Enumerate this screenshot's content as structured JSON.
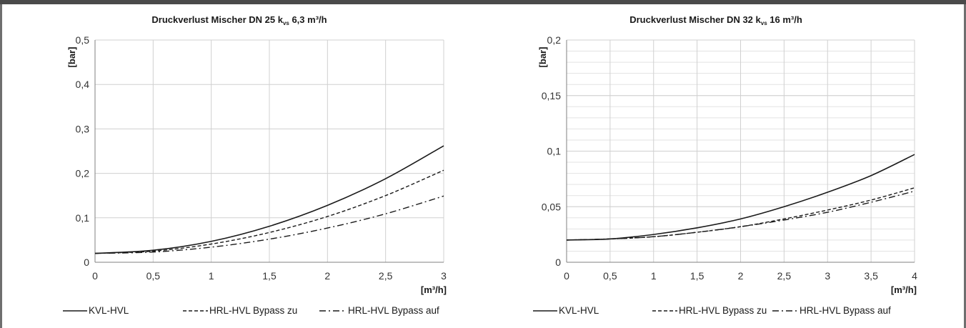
{
  "chart_data": [
    {
      "type": "line",
      "title": "Druckverlust Mischer DN 25 k",
      "title_sub": "vs",
      "title_rest": " 6,3 m³/h",
      "ylabel": "[bar]",
      "xlabel": "[m³/h]",
      "xlim": [
        0,
        3
      ],
      "ylim": [
        0,
        0.5
      ],
      "x_ticks": [
        0,
        0.5,
        1,
        1.5,
        2,
        2.5,
        3
      ],
      "x_tick_labels": [
        "0",
        "0,5",
        "1",
        "1,5",
        "2",
        "2,5",
        "3"
      ],
      "y_ticks": [
        0,
        0.1,
        0.2,
        0.3,
        0.4,
        0.5
      ],
      "y_tick_labels": [
        "0",
        "0,1",
        "0,2",
        "0,3",
        "0,4",
        "0,5"
      ],
      "grid": true,
      "legend_position": "bottom",
      "x": [
        0,
        0.5,
        1,
        1.5,
        2,
        2.5,
        3
      ],
      "series": [
        {
          "name": "KVL-HVL",
          "style": "solid",
          "values": [
            0.02,
            0.027,
            0.047,
            0.081,
            0.128,
            0.188,
            0.262
          ]
        },
        {
          "name": "HRL-HVL Bypass zu",
          "style": "dashed",
          "values": [
            0.02,
            0.025,
            0.041,
            0.067,
            0.103,
            0.15,
            0.207
          ]
        },
        {
          "name": "HRL-HVL Bypass auf",
          "style": "dashdot",
          "values": [
            0.02,
            0.023,
            0.034,
            0.052,
            0.077,
            0.109,
            0.149
          ]
        }
      ]
    },
    {
      "type": "line",
      "title": "Druckverlust Mischer DN 32 k",
      "title_sub": "vs",
      "title_rest": " 16 m³/h",
      "ylabel": "[bar]",
      "xlabel": "[m³/h]",
      "xlim": [
        0,
        4
      ],
      "ylim": [
        0,
        0.2
      ],
      "x_ticks": [
        0,
        0.5,
        1,
        1.5,
        2,
        2.5,
        3,
        3.5,
        4
      ],
      "x_tick_labels": [
        "0",
        "0,5",
        "1",
        "1,5",
        "2",
        "2,5",
        "3",
        "3,5",
        "4"
      ],
      "y_ticks": [
        0,
        0.05,
        0.1,
        0.15,
        0.2
      ],
      "y_tick_labels": [
        "0",
        "0,05",
        "0,1",
        "0,15",
        "0,2"
      ],
      "y_minor_step": 0.01,
      "grid": true,
      "legend_position": "bottom",
      "x": [
        0,
        0.5,
        1,
        1.5,
        2,
        2.5,
        3,
        3.5,
        4
      ],
      "series": [
        {
          "name": "KVL-HVL",
          "style": "solid",
          "values": [
            0.02,
            0.021,
            0.025,
            0.031,
            0.039,
            0.05,
            0.063,
            0.078,
            0.097
          ]
        },
        {
          "name": "HRL-HVL Bypass zu",
          "style": "dashed",
          "values": [
            0.02,
            0.021,
            0.023,
            0.027,
            0.032,
            0.039,
            0.047,
            0.056,
            0.067
          ]
        },
        {
          "name": "HRL-HVL Bypass auf",
          "style": "dashdot",
          "values": [
            0.02,
            0.021,
            0.023,
            0.027,
            0.032,
            0.038,
            0.045,
            0.054,
            0.064
          ]
        }
      ]
    }
  ],
  "colors": {
    "line": "#1a1a1a",
    "grid": "#d0d0d0",
    "frame": "#4a4a4a"
  }
}
